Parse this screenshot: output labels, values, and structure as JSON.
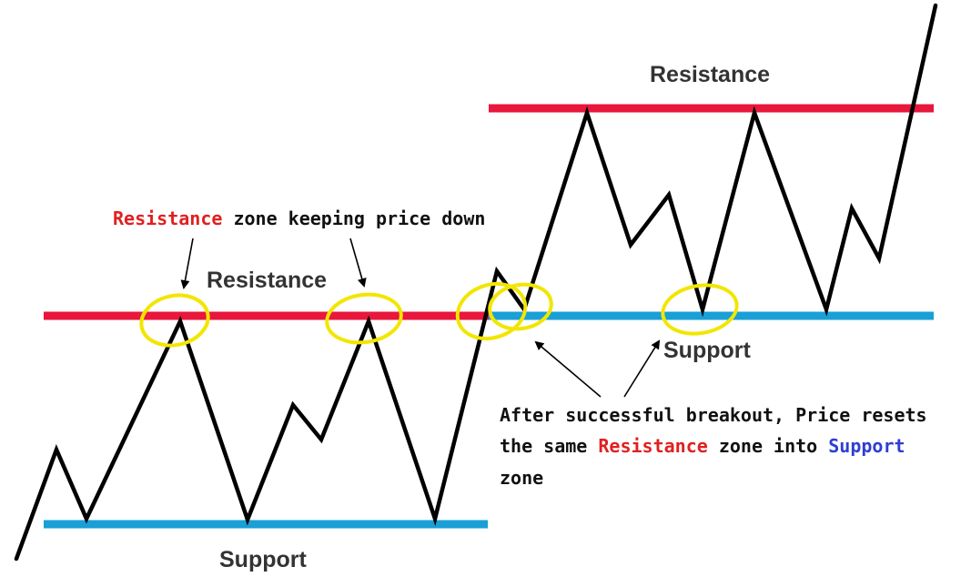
{
  "labels": {
    "resistance_left": "Resistance",
    "support_left": "Support",
    "resistance_right": "Resistance",
    "support_right": "Support"
  },
  "note_top": {
    "part1": "Resistance",
    "part2": " zone keeping price down"
  },
  "note_bottom": {
    "line1": "After successful breakout, Price resets",
    "line2_prefix": "the same ",
    "line2_resistance": "Resistance",
    "line2_mid": " zone into ",
    "line2_support": "Support",
    "line3": "zone"
  },
  "colors": {
    "resistance": "#e8173b",
    "support": "#1a9fd6",
    "highlight": "#f2e600",
    "price_line": "#000000",
    "note_resistance": "#e02020",
    "note_support": "#2f3fd0"
  }
}
